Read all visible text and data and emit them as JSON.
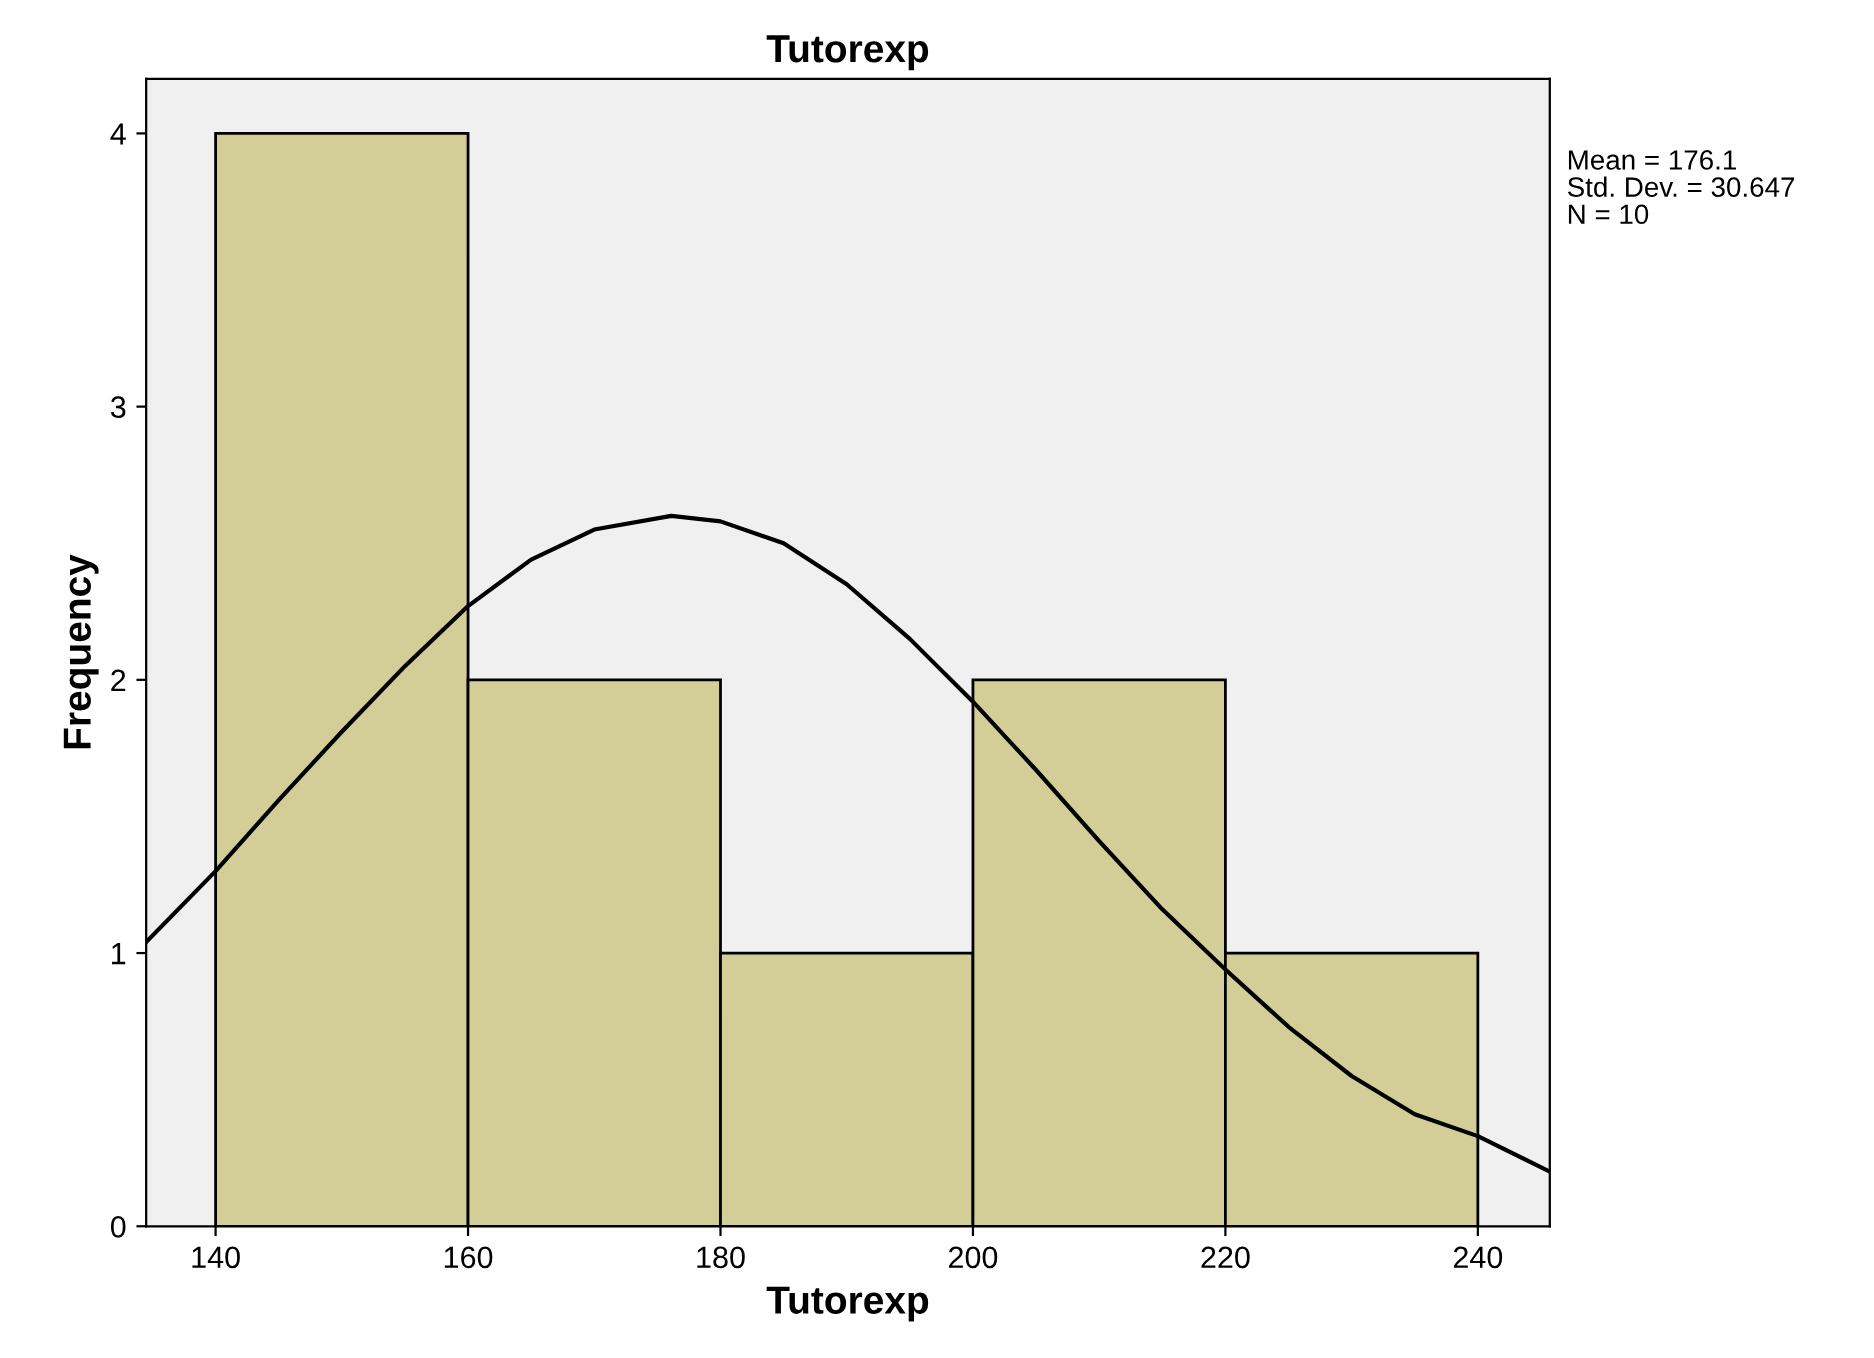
{
  "chart_data": {
    "type": "histogram",
    "title": "Tutorexp",
    "xlabel": "Tutorexp",
    "ylabel": "Frequency",
    "bins": [
      140,
      160,
      180,
      200,
      220,
      240
    ],
    "values": [
      4,
      2,
      1,
      2,
      1
    ],
    "color": "#d3ce97",
    "series": [
      {
        "type": "line",
        "color": "#000000",
        "x": [
          134.5,
          140,
          145,
          150,
          155,
          160,
          165,
          170,
          176.1,
          180,
          185,
          190,
          195,
          200,
          205,
          210,
          215,
          220,
          225,
          230,
          235,
          240,
          245.7
        ],
        "values": [
          1.04,
          1.3,
          1.56,
          1.81,
          2.05,
          2.27,
          2.44,
          2.55,
          2.6,
          2.58,
          2.5,
          2.35,
          2.15,
          1.92,
          1.67,
          1.41,
          1.16,
          0.94,
          0.73,
          0.55,
          0.41,
          0.33,
          0.2
        ]
      }
    ],
    "xlim": [
      134.5,
      245.7
    ],
    "ylim": [
      0,
      4.2
    ],
    "xticks": [
      140,
      160,
      180,
      200,
      220,
      240
    ],
    "yticks": [
      0,
      1,
      2,
      3,
      4
    ],
    "grid": false,
    "annotations": [
      "Mean = 176.1",
      "Std. Dev. = 30.647",
      "N = 10"
    ]
  }
}
